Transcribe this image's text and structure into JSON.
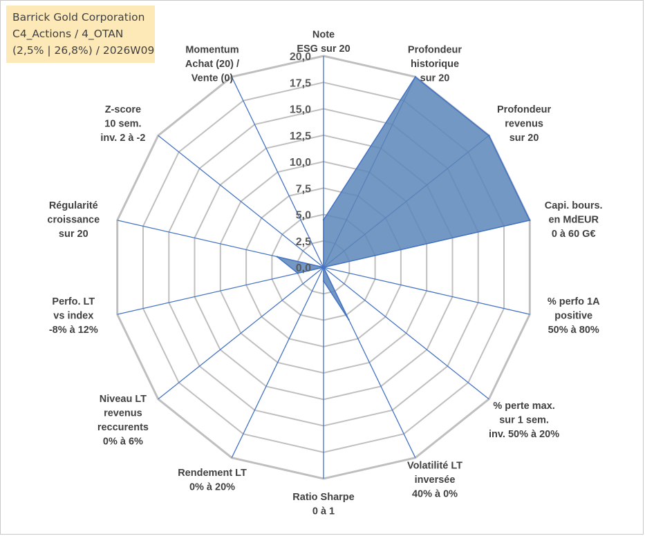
{
  "info_box": {
    "line1": "Barrick Gold Corporation",
    "line2": "C4_Actions / 4_OTAN",
    "line3": "(2,5% | 26,8%) / 2026W09"
  },
  "colors": {
    "grid": "#bfbfbf",
    "spoke": "#4472c4",
    "fill": "#5b86b8",
    "stroke": "#4472c4",
    "highlight": "#fde9b8"
  },
  "chart_data": {
    "type": "radar",
    "title": "",
    "rmin": 0,
    "rmax": 20,
    "tick_step": 2.5,
    "tick_labels": [
      "0,0",
      "2,5",
      "5,0",
      "7,5",
      "10,0",
      "12,5",
      "15,0",
      "17,5",
      "20,0"
    ],
    "axes": [
      {
        "label": [
          "Note",
          "ESG sur 20"
        ],
        "value": 4.5
      },
      {
        "label": [
          "Profondeur",
          "historique",
          "sur 20"
        ],
        "value": 20
      },
      {
        "label": [
          "Profondeur",
          "revenus",
          "sur 20"
        ],
        "value": 20
      },
      {
        "label": [
          "Capi. bours.",
          "en MdEUR",
          "0 à 60 G€"
        ],
        "value": 20
      },
      {
        "label": [
          "% perfo 1A",
          "positive",
          "50% à 80%"
        ],
        "value": 0
      },
      {
        "label": [
          "% perte max.",
          "sur 1 sem.",
          "inv. 50% à 20%"
        ],
        "value": 0
      },
      {
        "label": [
          "Volatilité LT",
          "inversée",
          "40% à 0%"
        ],
        "value": 5.5
      },
      {
        "label": [
          "Ratio Sharpe",
          "0 à 1"
        ],
        "value": 1.3
      },
      {
        "label": [
          "Rendement LT",
          "0% à 20%"
        ],
        "value": 0
      },
      {
        "label": [
          "Niveau LT",
          "revenus",
          "reccurents",
          "0% à 6%"
        ],
        "value": 0
      },
      {
        "label": [
          "Perfo. LT",
          "vs index",
          "-8% à 12%"
        ],
        "value": 2.5
      },
      {
        "label": [
          "Régularité",
          "croissance",
          "sur 20"
        ],
        "value": 4.5
      },
      {
        "label": [
          "Z-score",
          "10 sem.",
          "inv. 2 à -2"
        ],
        "value": 0
      },
      {
        "label": [
          "Momentum",
          "Achat (20) /",
          "Vente (0)"
        ],
        "value": 0
      }
    ]
  }
}
